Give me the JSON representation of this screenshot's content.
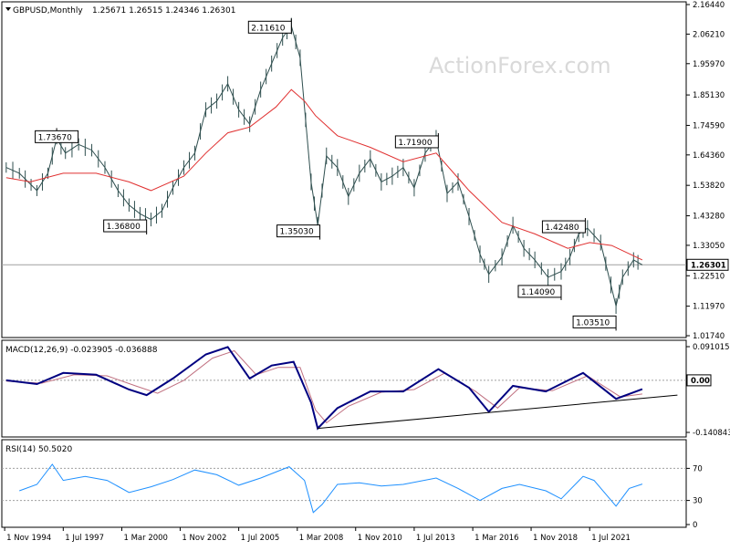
{
  "chart_data": {
    "type": "line",
    "title": "GBPUSD,Monthly",
    "ohlc_label": "1.25671 1.26515 1.24346 1.26301",
    "watermark": "ActionForex.com",
    "colors": {
      "price": "#2f4f4f",
      "moving_average": "#e03030",
      "macd": "#000080",
      "signal": "#c07080",
      "rsi": "#1e90ff",
      "trendline": "#000000",
      "watermark": "#d9d9d9"
    },
    "price": {
      "ylim": [
        1.0174,
        2.1644
      ],
      "y_ticks": [
        "2.16440",
        "2.06210",
        "1.95970",
        "1.85130",
        "1.74590",
        "1.64360",
        "1.53820",
        "1.43280",
        "1.33050",
        "1.22510",
        "1.11970",
        "1.01740"
      ],
      "last_label": "1.26301",
      "last_value": 1.26301,
      "series": [
        {
          "x": 1994.9,
          "y": 1.6
        },
        {
          "x": 1995.5,
          "y": 1.58
        },
        {
          "x": 1996.3,
          "y": 1.52
        },
        {
          "x": 1996.8,
          "y": 1.58
        },
        {
          "x": 1997.2,
          "y": 1.7
        },
        {
          "x": 1997.6,
          "y": 1.65
        },
        {
          "x": 1998.2,
          "y": 1.68
        },
        {
          "x": 1998.8,
          "y": 1.66
        },
        {
          "x": 1999.4,
          "y": 1.6
        },
        {
          "x": 2000.0,
          "y": 1.52
        },
        {
          "x": 2000.5,
          "y": 1.47
        },
        {
          "x": 2001.0,
          "y": 1.44
        },
        {
          "x": 2001.5,
          "y": 1.42
        },
        {
          "x": 2002.0,
          "y": 1.45
        },
        {
          "x": 2002.5,
          "y": 1.53
        },
        {
          "x": 2003.0,
          "y": 1.6
        },
        {
          "x": 2003.5,
          "y": 1.65
        },
        {
          "x": 2004.0,
          "y": 1.8
        },
        {
          "x": 2004.5,
          "y": 1.83
        },
        {
          "x": 2005.0,
          "y": 1.89
        },
        {
          "x": 2005.5,
          "y": 1.8
        },
        {
          "x": 2006.0,
          "y": 1.75
        },
        {
          "x": 2006.5,
          "y": 1.87
        },
        {
          "x": 2007.0,
          "y": 1.96
        },
        {
          "x": 2007.5,
          "y": 2.05
        },
        {
          "x": 2007.9,
          "y": 2.09
        },
        {
          "x": 2008.3,
          "y": 1.98
        },
        {
          "x": 2008.8,
          "y": 1.55
        },
        {
          "x": 2009.1,
          "y": 1.4
        },
        {
          "x": 2009.5,
          "y": 1.64
        },
        {
          "x": 2010.0,
          "y": 1.6
        },
        {
          "x": 2010.5,
          "y": 1.5
        },
        {
          "x": 2011.0,
          "y": 1.58
        },
        {
          "x": 2011.5,
          "y": 1.63
        },
        {
          "x": 2012.0,
          "y": 1.55
        },
        {
          "x": 2012.5,
          "y": 1.57
        },
        {
          "x": 2013.0,
          "y": 1.6
        },
        {
          "x": 2013.5,
          "y": 1.53
        },
        {
          "x": 2014.0,
          "y": 1.65
        },
        {
          "x": 2014.5,
          "y": 1.7
        },
        {
          "x": 2015.0,
          "y": 1.51
        },
        {
          "x": 2015.5,
          "y": 1.55
        },
        {
          "x": 2016.0,
          "y": 1.43
        },
        {
          "x": 2016.5,
          "y": 1.3
        },
        {
          "x": 2016.9,
          "y": 1.23
        },
        {
          "x": 2017.5,
          "y": 1.29
        },
        {
          "x": 2018.0,
          "y": 1.4
        },
        {
          "x": 2018.5,
          "y": 1.32
        },
        {
          "x": 2019.0,
          "y": 1.28
        },
        {
          "x": 2019.6,
          "y": 1.22
        },
        {
          "x": 2020.2,
          "y": 1.24
        },
        {
          "x": 2020.6,
          "y": 1.29
        },
        {
          "x": 2021.0,
          "y": 1.37
        },
        {
          "x": 2021.4,
          "y": 1.39
        },
        {
          "x": 2022.0,
          "y": 1.34
        },
        {
          "x": 2022.7,
          "y": 1.12
        },
        {
          "x": 2023.0,
          "y": 1.22
        },
        {
          "x": 2023.5,
          "y": 1.28
        },
        {
          "x": 2023.9,
          "y": 1.263
        }
      ],
      "moving_average": [
        {
          "x": 1994.9,
          "y": 1.565
        },
        {
          "x": 1996.0,
          "y": 1.55
        },
        {
          "x": 1997.5,
          "y": 1.58
        },
        {
          "x": 1999.0,
          "y": 1.58
        },
        {
          "x": 2000.5,
          "y": 1.55
        },
        {
          "x": 2001.5,
          "y": 1.52
        },
        {
          "x": 2003.0,
          "y": 1.57
        },
        {
          "x": 2004.0,
          "y": 1.65
        },
        {
          "x": 2005.0,
          "y": 1.72
        },
        {
          "x": 2006.0,
          "y": 1.74
        },
        {
          "x": 2007.2,
          "y": 1.81
        },
        {
          "x": 2007.9,
          "y": 1.87
        },
        {
          "x": 2008.5,
          "y": 1.83
        },
        {
          "x": 2009.0,
          "y": 1.78
        },
        {
          "x": 2010.0,
          "y": 1.71
        },
        {
          "x": 2011.5,
          "y": 1.67
        },
        {
          "x": 2013.0,
          "y": 1.62
        },
        {
          "x": 2014.5,
          "y": 1.65
        },
        {
          "x": 2016.0,
          "y": 1.52
        },
        {
          "x": 2017.5,
          "y": 1.41
        },
        {
          "x": 2019.0,
          "y": 1.37
        },
        {
          "x": 2020.5,
          "y": 1.32
        },
        {
          "x": 2021.5,
          "y": 1.34
        },
        {
          "x": 2022.5,
          "y": 1.33
        },
        {
          "x": 2023.9,
          "y": 1.28
        }
      ],
      "annotations": [
        {
          "label": "1.73670",
          "x": 1997.2,
          "y": 1.7367,
          "anchor": "below",
          "align": "center"
        },
        {
          "label": "1.36800",
          "x": 2001.3,
          "y": 1.368,
          "anchor": "above",
          "align": "right"
        },
        {
          "label": "2.11610",
          "x": 2007.9,
          "y": 2.1161,
          "anchor": "below",
          "align": "right"
        },
        {
          "label": "1.35030",
          "x": 2009.2,
          "y": 1.3503,
          "anchor": "above",
          "align": "right"
        },
        {
          "label": "1.71900",
          "x": 2014.6,
          "y": 1.719,
          "anchor": "below",
          "align": "right"
        },
        {
          "label": "1.42480",
          "x": 2021.3,
          "y": 1.4248,
          "anchor": "below",
          "align": "right"
        },
        {
          "label": "1.14090",
          "x": 2020.2,
          "y": 1.1409,
          "anchor": "above",
          "align": "right"
        },
        {
          "label": "1.03510",
          "x": 2022.7,
          "y": 1.0351,
          "anchor": "above",
          "align": "right"
        }
      ]
    },
    "macd": {
      "title": "MACD(12,26,9) -0.023905 -0.036888",
      "ylim": [
        -0.140843,
        0.091015
      ],
      "y_ticks": [
        "0.091015",
        "0.00",
        "-0.140843"
      ],
      "marker_labels": [
        "0.00"
      ],
      "macd_series": [
        {
          "x": 1994.9,
          "y": 0.0
        },
        {
          "x": 1996.3,
          "y": -0.01
        },
        {
          "x": 1997.5,
          "y": 0.02
        },
        {
          "x": 1999.0,
          "y": 0.015
        },
        {
          "x": 2000.5,
          "y": -0.025
        },
        {
          "x": 2001.3,
          "y": -0.04
        },
        {
          "x": 2002.5,
          "y": 0.005
        },
        {
          "x": 2004.0,
          "y": 0.07
        },
        {
          "x": 2005.0,
          "y": 0.09
        },
        {
          "x": 2006.0,
          "y": 0.005
        },
        {
          "x": 2007.0,
          "y": 0.04
        },
        {
          "x": 2008.0,
          "y": 0.05
        },
        {
          "x": 2008.8,
          "y": -0.06
        },
        {
          "x": 2009.1,
          "y": -0.13
        },
        {
          "x": 2010.0,
          "y": -0.075
        },
        {
          "x": 2011.5,
          "y": -0.03
        },
        {
          "x": 2013.0,
          "y": -0.03
        },
        {
          "x": 2014.6,
          "y": 0.03
        },
        {
          "x": 2016.0,
          "y": -0.02
        },
        {
          "x": 2016.9,
          "y": -0.085
        },
        {
          "x": 2018.0,
          "y": -0.015
        },
        {
          "x": 2019.5,
          "y": -0.03
        },
        {
          "x": 2021.2,
          "y": 0.02
        },
        {
          "x": 2022.7,
          "y": -0.05
        },
        {
          "x": 2023.9,
          "y": -0.024
        }
      ],
      "signal_series": [
        {
          "x": 1994.9,
          "y": -0.002
        },
        {
          "x": 1996.5,
          "y": -0.008
        },
        {
          "x": 1998.0,
          "y": 0.015
        },
        {
          "x": 1999.5,
          "y": 0.012
        },
        {
          "x": 2000.8,
          "y": -0.015
        },
        {
          "x": 2001.8,
          "y": -0.035
        },
        {
          "x": 2003.0,
          "y": 0.0
        },
        {
          "x": 2004.3,
          "y": 0.06
        },
        {
          "x": 2005.3,
          "y": 0.08
        },
        {
          "x": 2006.3,
          "y": 0.015
        },
        {
          "x": 2007.3,
          "y": 0.035
        },
        {
          "x": 2008.3,
          "y": 0.035
        },
        {
          "x": 2009.0,
          "y": -0.08
        },
        {
          "x": 2009.5,
          "y": -0.115
        },
        {
          "x": 2010.5,
          "y": -0.07
        },
        {
          "x": 2012.0,
          "y": -0.032
        },
        {
          "x": 2013.5,
          "y": -0.025
        },
        {
          "x": 2014.9,
          "y": 0.02
        },
        {
          "x": 2016.3,
          "y": -0.03
        },
        {
          "x": 2017.3,
          "y": -0.075
        },
        {
          "x": 2018.3,
          "y": -0.02
        },
        {
          "x": 2019.8,
          "y": -0.028
        },
        {
          "x": 2021.4,
          "y": 0.012
        },
        {
          "x": 2022.9,
          "y": -0.045
        },
        {
          "x": 2023.9,
          "y": -0.037
        }
      ],
      "trendline": [
        {
          "x": 2009.1,
          "y": -0.13
        },
        {
          "x": 2025.5,
          "y": -0.04
        }
      ]
    },
    "rsi": {
      "title": "RSI(14) 50.5020",
      "ylim": [
        0,
        100
      ],
      "y_ticks": [
        "70",
        "30",
        "0"
      ],
      "levels": [
        70,
        30
      ],
      "series": [
        {
          "x": 1995.5,
          "y": 42
        },
        {
          "x": 1996.3,
          "y": 50
        },
        {
          "x": 1997.0,
          "y": 75
        },
        {
          "x": 1997.5,
          "y": 55
        },
        {
          "x": 1998.5,
          "y": 60
        },
        {
          "x": 1999.5,
          "y": 55
        },
        {
          "x": 2000.5,
          "y": 40
        },
        {
          "x": 2001.5,
          "y": 47
        },
        {
          "x": 2002.5,
          "y": 56
        },
        {
          "x": 2003.5,
          "y": 68
        },
        {
          "x": 2004.5,
          "y": 62
        },
        {
          "x": 2005.5,
          "y": 49
        },
        {
          "x": 2006.5,
          "y": 58
        },
        {
          "x": 2007.8,
          "y": 72
        },
        {
          "x": 2008.5,
          "y": 55
        },
        {
          "x": 2008.9,
          "y": 15
        },
        {
          "x": 2009.3,
          "y": 25
        },
        {
          "x": 2010.0,
          "y": 50
        },
        {
          "x": 2011.0,
          "y": 52
        },
        {
          "x": 2012.0,
          "y": 48
        },
        {
          "x": 2013.0,
          "y": 50
        },
        {
          "x": 2014.5,
          "y": 58
        },
        {
          "x": 2015.5,
          "y": 45
        },
        {
          "x": 2016.5,
          "y": 30
        },
        {
          "x": 2017.5,
          "y": 45
        },
        {
          "x": 2018.3,
          "y": 50
        },
        {
          "x": 2019.5,
          "y": 42
        },
        {
          "x": 2020.2,
          "y": 32
        },
        {
          "x": 2021.2,
          "y": 60
        },
        {
          "x": 2021.7,
          "y": 55
        },
        {
          "x": 2022.7,
          "y": 23
        },
        {
          "x": 2023.3,
          "y": 45
        },
        {
          "x": 2023.9,
          "y": 50.5
        }
      ]
    },
    "x_axis": {
      "xlim": [
        1994.7,
        2025.9
      ],
      "ticks": [
        {
          "label": "1 Nov 1994",
          "x": 1994.83
        },
        {
          "label": "1 Jul 1997",
          "x": 1997.5
        },
        {
          "label": "1 Mar 2000",
          "x": 2000.17
        },
        {
          "label": "1 Nov 2002",
          "x": 2002.83
        },
        {
          "label": "1 Jul 2005",
          "x": 2005.5
        },
        {
          "label": "1 Mar 2008",
          "x": 2008.17
        },
        {
          "label": "1 Nov 2010",
          "x": 2010.83
        },
        {
          "label": "1 Jul 2013",
          "x": 2013.5
        },
        {
          "label": "1 Mar 2016",
          "x": 2016.17
        },
        {
          "label": "1 Nov 2018",
          "x": 2018.83
        },
        {
          "label": "1 Jul 2021",
          "x": 2021.5
        }
      ]
    }
  }
}
